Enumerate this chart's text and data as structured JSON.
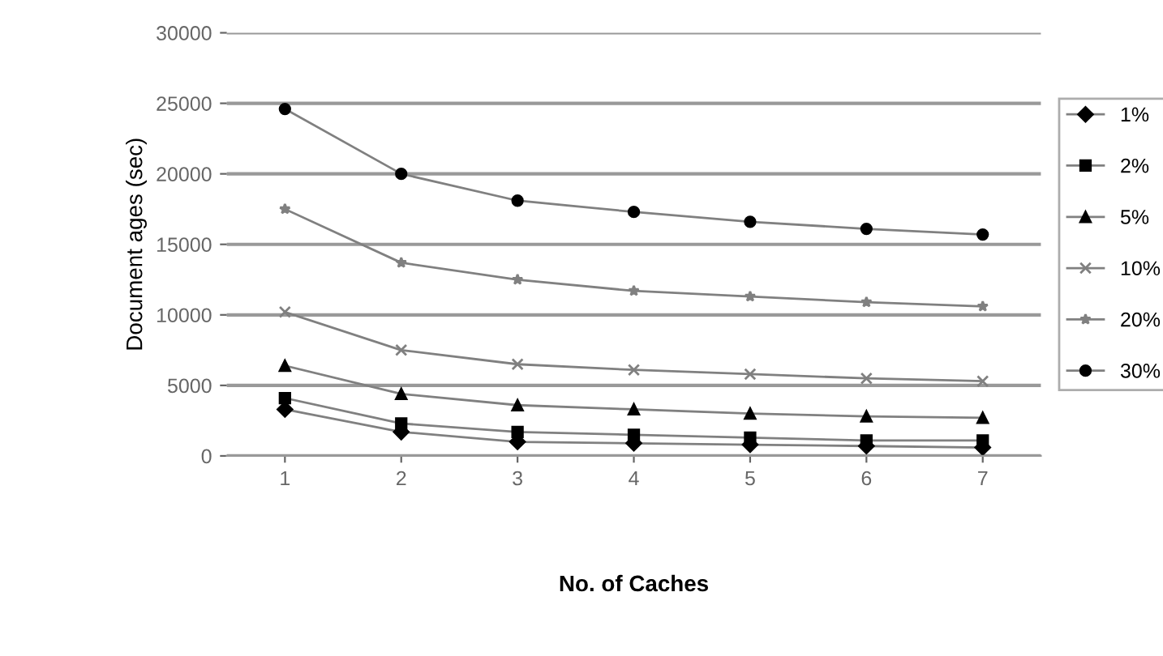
{
  "chart_data": {
    "type": "line",
    "xlabel": "No. of Caches",
    "ylabel": "Document ages (sec)",
    "categories": [
      "1",
      "2",
      "3",
      "4",
      "5",
      "6",
      "7"
    ],
    "series": [
      {
        "name": "1%",
        "color": "#000000",
        "marker": "diamond",
        "values": [
          3300,
          1700,
          1000,
          900,
          800,
          700,
          600
        ]
      },
      {
        "name": "2%",
        "color": "#000000",
        "marker": "square",
        "values": [
          4100,
          2300,
          1700,
          1500,
          1300,
          1100,
          1100
        ]
      },
      {
        "name": "5%",
        "color": "#000000",
        "marker": "triangle",
        "values": [
          6400,
          4400,
          3600,
          3300,
          3000,
          2800,
          2700
        ]
      },
      {
        "name": "10%",
        "color": "#808080",
        "marker": "cross",
        "values": [
          10200,
          7500,
          6500,
          6100,
          5800,
          5500,
          5300
        ]
      },
      {
        "name": "20%",
        "color": "#808080",
        "marker": "star",
        "values": [
          17500,
          13700,
          12500,
          11700,
          11300,
          10900,
          10600
        ]
      },
      {
        "name": "30%",
        "color": "#000000",
        "marker": "circle",
        "values": [
          24600,
          20000,
          18100,
          17300,
          16600,
          16100,
          15700
        ]
      }
    ],
    "ylim": [
      0,
      30000
    ],
    "yticks": [
      0,
      5000,
      10000,
      15000,
      20000,
      25000,
      30000
    ],
    "grid": "y",
    "legend": "right",
    "line_style": "solid"
  }
}
